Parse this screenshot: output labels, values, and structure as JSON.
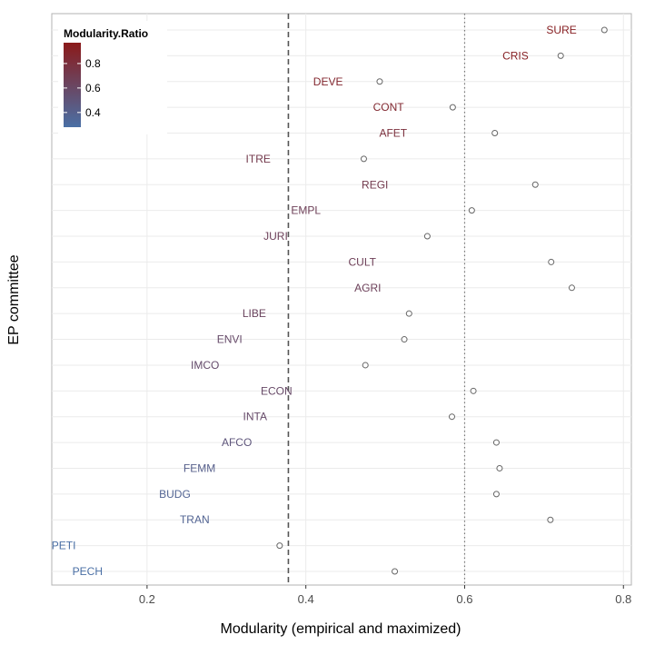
{
  "chart_data": {
    "type": "scatter",
    "title": "",
    "xlabel": "Modularity (empirical and maximized)",
    "ylabel": "EP committee",
    "xlim": [
      0.08,
      0.81
    ],
    "x_ticks": [
      "0.2",
      "0.4",
      "0.6",
      "0.8"
    ],
    "grid": true,
    "reference_lines": [
      {
        "x": 0.378,
        "style": "dashed"
      },
      {
        "x": 0.6,
        "style": "dotted"
      }
    ],
    "legend": {
      "title": "Modularity.Ratio",
      "placement": "top-left",
      "ticks": [
        "0.8",
        "0.6",
        "0.4"
      ],
      "range": [
        0.28,
        0.97
      ],
      "low_color": "#4a6fa5",
      "high_color": "#8b1a1a"
    },
    "committees": [
      {
        "name": "SURE",
        "empirical": 0.722,
        "maximized": 0.776,
        "ratio": 0.93
      },
      {
        "name": "CRIS",
        "empirical": 0.664,
        "maximized": 0.721,
        "ratio": 0.92
      },
      {
        "name": "DEVE",
        "empirical": 0.428,
        "maximized": 0.493,
        "ratio": 0.87
      },
      {
        "name": "CONT",
        "empirical": 0.504,
        "maximized": 0.585,
        "ratio": 0.86
      },
      {
        "name": "AFET",
        "empirical": 0.51,
        "maximized": 0.638,
        "ratio": 0.8
      },
      {
        "name": "ITRE",
        "empirical": 0.34,
        "maximized": 0.473,
        "ratio": 0.72
      },
      {
        "name": "REGI",
        "empirical": 0.487,
        "maximized": 0.689,
        "ratio": 0.71
      },
      {
        "name": "EMPL",
        "empirical": 0.4,
        "maximized": 0.609,
        "ratio": 0.66
      },
      {
        "name": "JURI",
        "empirical": 0.362,
        "maximized": 0.553,
        "ratio": 0.65
      },
      {
        "name": "CULT",
        "empirical": 0.471,
        "maximized": 0.709,
        "ratio": 0.66
      },
      {
        "name": "AGRI",
        "empirical": 0.478,
        "maximized": 0.735,
        "ratio": 0.65
      },
      {
        "name": "LIBE",
        "empirical": 0.335,
        "maximized": 0.53,
        "ratio": 0.63
      },
      {
        "name": "ENVI",
        "empirical": 0.304,
        "maximized": 0.524,
        "ratio": 0.58
      },
      {
        "name": "IMCO",
        "empirical": 0.273,
        "maximized": 0.475,
        "ratio": 0.57
      },
      {
        "name": "ECON",
        "empirical": 0.363,
        "maximized": 0.611,
        "ratio": 0.59
      },
      {
        "name": "INTA",
        "empirical": 0.336,
        "maximized": 0.584,
        "ratio": 0.58
      },
      {
        "name": "AFCO",
        "empirical": 0.313,
        "maximized": 0.64,
        "ratio": 0.49
      },
      {
        "name": "FEMM",
        "empirical": 0.266,
        "maximized": 0.644,
        "ratio": 0.41
      },
      {
        "name": "BUDG",
        "empirical": 0.235,
        "maximized": 0.64,
        "ratio": 0.37
      },
      {
        "name": "TRAN",
        "empirical": 0.26,
        "maximized": 0.708,
        "ratio": 0.37
      },
      {
        "name": "PETI",
        "empirical": 0.095,
        "maximized": 0.367,
        "ratio": 0.26
      },
      {
        "name": "PECH",
        "empirical": 0.125,
        "maximized": 0.512,
        "ratio": 0.24
      }
    ]
  }
}
